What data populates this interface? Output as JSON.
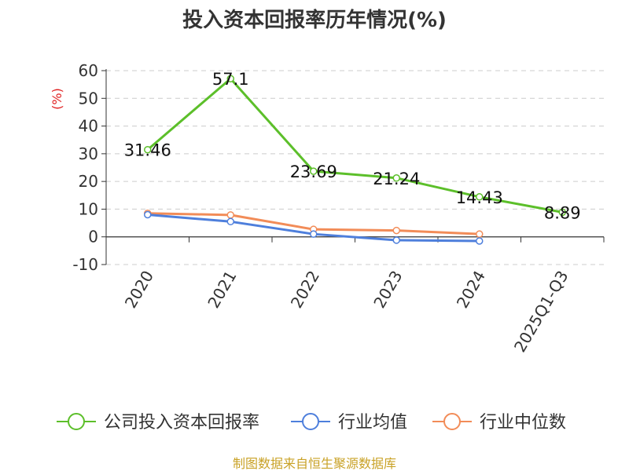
{
  "chart_data": {
    "type": "line",
    "title": "投入资本回报率历年情况(%)",
    "ylabel": "(%)",
    "categories": [
      "2020",
      "2021",
      "2022",
      "2023",
      "2024",
      "2025Q1-Q3"
    ],
    "y_ticks": [
      "60",
      "50",
      "40",
      "30",
      "20",
      "10",
      "0",
      "-10"
    ],
    "ylim": [
      -10,
      60
    ],
    "grid": true,
    "legend_position": "bottom",
    "series": [
      {
        "name": "公司投入资本回报率",
        "color": "#5cbf2a",
        "values": [
          31.46,
          57.1,
          23.69,
          21.24,
          14.43,
          8.89
        ],
        "labels": [
          "31.46",
          "57.1",
          "23.69",
          "21.24",
          "14.43",
          "8.89"
        ]
      },
      {
        "name": "行业均值",
        "color": "#4e7fdc",
        "values": [
          8.0,
          5.5,
          1.0,
          -1.2,
          -1.5,
          null
        ]
      },
      {
        "name": "行业中位数",
        "color": "#f28c58",
        "values": [
          8.5,
          7.9,
          2.7,
          2.3,
          1.0,
          null
        ]
      }
    ],
    "unit_color": "#e02020",
    "source": "制图数据来自恒生聚源数据库",
    "source_color": "#c9a227"
  }
}
